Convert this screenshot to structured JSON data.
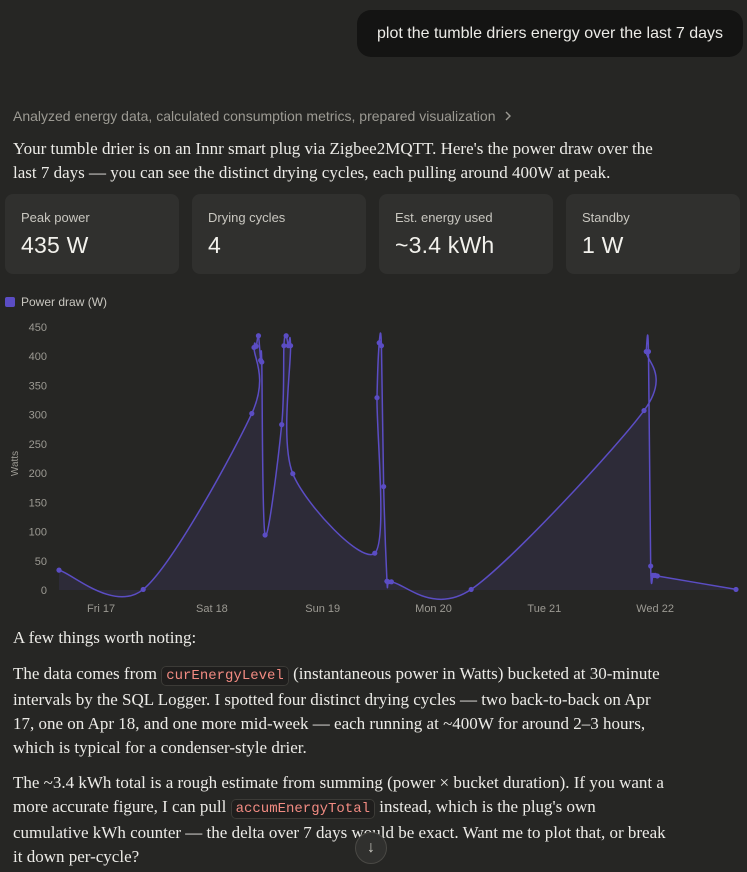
{
  "user_message": "plot the tumble driers energy over the last 7 days",
  "analysis_summary": "Analyzed energy data, calculated consumption metrics, prepared visualization",
  "intro_line1": "Your tumble drier is on an Innr smart plug via Zigbee2MQTT. Here's the power draw over the",
  "intro_line2": "last 7 days — you can see the distinct drying cycles, each pulling around 400W at peak.",
  "stats": [
    {
      "label": "Peak power",
      "value": "435 W"
    },
    {
      "label": "Drying cycles",
      "value": "4"
    },
    {
      "label": "Est. energy used",
      "value": "~3.4 kWh"
    },
    {
      "label": "Standby",
      "value": "1 W"
    }
  ],
  "chart_data": {
    "type": "area",
    "ylabel": "Watts",
    "ylim": [
      0,
      450
    ],
    "yticks": [
      "450",
      "400",
      "350",
      "300",
      "250",
      "200",
      "150",
      "100",
      "50",
      "0"
    ],
    "xticks": [
      "Fri 17",
      "Sat 18",
      "Sun 19",
      "Mon 20",
      "Tue 21",
      "Wed 22"
    ],
    "xlim": [
      -0.38,
      5.73
    ],
    "series": [
      {
        "name": "Power draw (W)",
        "color": "#5b4dc4",
        "x": [
          -0.38,
          0.38,
          1.36,
          1.38,
          1.4,
          1.42,
          1.44,
          1.45,
          1.48,
          1.63,
          1.65,
          1.67,
          1.69,
          1.71,
          1.73,
          2.47,
          2.49,
          2.51,
          2.53,
          2.55,
          2.58,
          2.59,
          2.62,
          3.34,
          4.9,
          4.92,
          4.94,
          4.96,
          4.98,
          5.0,
          5.02,
          5.73
        ],
        "y": [
          34,
          1,
          302,
          415,
          417,
          435,
          393,
          390,
          94,
          283,
          418,
          435,
          418,
          418,
          199,
          63,
          329,
          423,
          418,
          177,
          15,
          14,
          14,
          1,
          307,
          408,
          408,
          41,
          25,
          25,
          24,
          1
        ]
      }
    ]
  },
  "notes_intro": "A few things worth noting:",
  "p1_a": "The data comes from ",
  "p1_code": "curEnergyLevel",
  "p1_b": " (instantaneous power in Watts) bucketed at 30-minute",
  "p1_line2": "intervals by the SQL Logger. I spotted four distinct drying cycles — two back-to-back on Apr",
  "p1_line3": "17, one on Apr 18, and one more mid-week — each running at ~400W for around 2–3 hours,",
  "p1_line4": "which is typical for a condenser-style drier.",
  "p2_line1": "The ~3.4 kWh total is a rough estimate from summing (power × bucket duration). If you want a",
  "p2_a": "more accurate figure, I can pull ",
  "p2_code": "accumEnergyTotal",
  "p2_b": " instead, which is the plug's own",
  "p2_line3": "cumulative kWh counter — the delta over 7 days would be exact. Want me to plot that, or break",
  "p2_line4": "it down per-cycle?"
}
